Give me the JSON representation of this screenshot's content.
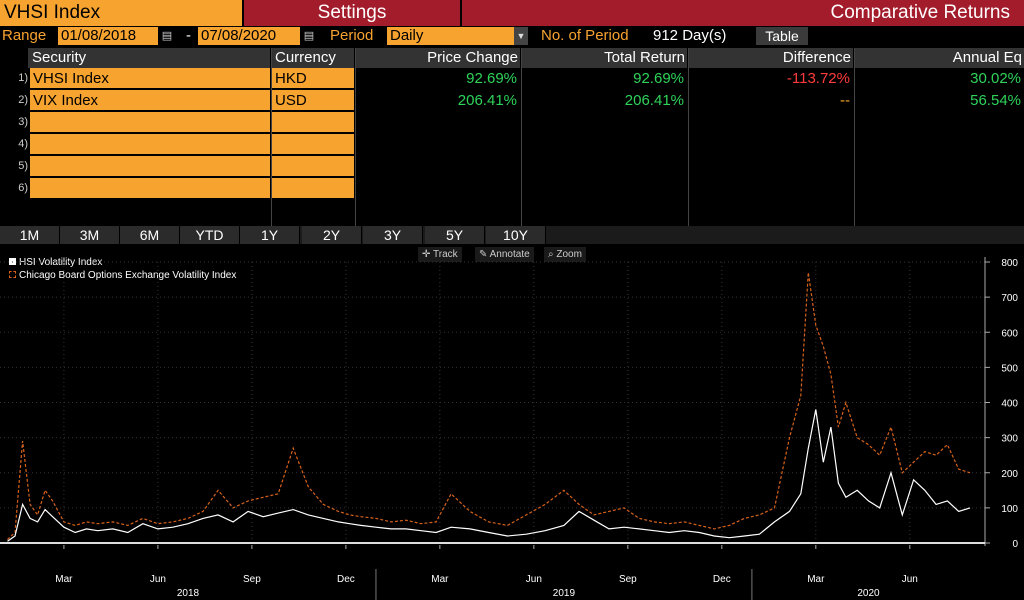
{
  "header": {
    "ticker": "VHSI Index",
    "settings_label": "Settings",
    "title": "Comparative Returns"
  },
  "range": {
    "label": "Range",
    "start": "01/08/2018",
    "dash": "-",
    "end": "07/08/2020",
    "period_label": "Period",
    "period_value": "Daily",
    "num_period_label": "No. of Period",
    "num_period_value": "912 Day(s)",
    "table_label": "Table"
  },
  "table": {
    "headers": [
      "Security",
      "Currency",
      "Price Change",
      "Total Return",
      "Difference",
      "Annual Eq"
    ],
    "rows": [
      {
        "n": "1)",
        "security": "VHSI Index",
        "currency": "HKD",
        "price_change": "92.69%",
        "total_return": "92.69%",
        "difference": "-113.72%",
        "annual_eq": "30.02%"
      },
      {
        "n": "2)",
        "security": "VIX Index",
        "currency": "USD",
        "price_change": "206.41%",
        "total_return": "206.41%",
        "difference": "--",
        "annual_eq": "56.54%"
      },
      {
        "n": "3)",
        "security": "",
        "currency": "",
        "price_change": "",
        "total_return": "",
        "difference": "",
        "annual_eq": ""
      },
      {
        "n": "4)",
        "security": "",
        "currency": "",
        "price_change": "",
        "total_return": "",
        "difference": "",
        "annual_eq": ""
      },
      {
        "n": "5)",
        "security": "",
        "currency": "",
        "price_change": "",
        "total_return": "",
        "difference": "",
        "annual_eq": ""
      },
      {
        "n": "6)",
        "security": "",
        "currency": "",
        "price_change": "",
        "total_return": "",
        "difference": "",
        "annual_eq": ""
      }
    ]
  },
  "periods": [
    "1M",
    "3M",
    "6M",
    "YTD",
    "1Y",
    "2Y",
    "3Y",
    "5Y",
    "10Y"
  ],
  "chart_tools": {
    "track": "Track",
    "annotate": "Annotate",
    "zoom": "Zoom"
  },
  "colors": {
    "accent": "#f7a330",
    "title_bar": "#a31c2b",
    "positive": "#2fd35a",
    "negative": "#ff3b3b",
    "series_hsi": "#ffffff",
    "series_vix": "#d8621a"
  },
  "chart_data": {
    "type": "line",
    "ylim": [
      0,
      800
    ],
    "yticks": [
      "0",
      "100",
      "200",
      "300",
      "400",
      "500",
      "600",
      "700",
      "800"
    ],
    "month_labels": [
      "Mar",
      "Jun",
      "Sep",
      "Dec",
      "Mar",
      "Jun",
      "Sep",
      "Dec",
      "Mar",
      "Jun"
    ],
    "year_labels": [
      "2018",
      "2019",
      "2020"
    ],
    "series": [
      {
        "name": "HSI Volatility Index",
        "x": [
          2018.02,
          2018.04,
          2018.06,
          2018.08,
          2018.1,
          2018.12,
          2018.14,
          2018.17,
          2018.2,
          2018.23,
          2018.26,
          2018.3,
          2018.34,
          2018.38,
          2018.42,
          2018.46,
          2018.5,
          2018.54,
          2018.58,
          2018.62,
          2018.66,
          2018.7,
          2018.74,
          2018.78,
          2018.82,
          2018.86,
          2018.9,
          2018.93,
          2018.96,
          2019.0,
          2019.04,
          2019.08,
          2019.12,
          2019.16,
          2019.2,
          2019.25,
          2019.3,
          2019.35,
          2019.4,
          2019.45,
          2019.5,
          2019.54,
          2019.58,
          2019.62,
          2019.66,
          2019.7,
          2019.74,
          2019.78,
          2019.82,
          2019.86,
          2019.9,
          2019.94,
          2019.98,
          2020.02,
          2020.06,
          2020.1,
          2020.13,
          2020.15,
          2020.17,
          2020.19,
          2020.21,
          2020.23,
          2020.25,
          2020.28,
          2020.31,
          2020.34,
          2020.37,
          2020.4,
          2020.43,
          2020.46,
          2020.49,
          2020.52,
          2020.55,
          2020.58
        ],
        "values": [
          5,
          20,
          110,
          70,
          60,
          95,
          75,
          45,
          30,
          40,
          35,
          40,
          30,
          55,
          40,
          45,
          55,
          70,
          80,
          60,
          90,
          75,
          85,
          95,
          80,
          70,
          60,
          55,
          50,
          45,
          40,
          40,
          35,
          30,
          45,
          40,
          30,
          20,
          25,
          35,
          50,
          90,
          65,
          40,
          45,
          40,
          35,
          30,
          35,
          30,
          20,
          15,
          20,
          25,
          60,
          90,
          140,
          270,
          380,
          230,
          330,
          170,
          130,
          150,
          120,
          100,
          200,
          80,
          180,
          150,
          110,
          120,
          90,
          100
        ]
      },
      {
        "name": "Chicago Board Options Exchange Volatility Index",
        "x": [
          2018.02,
          2018.04,
          2018.06,
          2018.08,
          2018.1,
          2018.12,
          2018.14,
          2018.17,
          2018.2,
          2018.23,
          2018.26,
          2018.3,
          2018.34,
          2018.38,
          2018.42,
          2018.46,
          2018.5,
          2018.54,
          2018.58,
          2018.62,
          2018.66,
          2018.7,
          2018.74,
          2018.78,
          2018.82,
          2018.86,
          2018.9,
          2018.93,
          2018.96,
          2019.0,
          2019.04,
          2019.08,
          2019.12,
          2019.16,
          2019.2,
          2019.25,
          2019.3,
          2019.35,
          2019.4,
          2019.45,
          2019.5,
          2019.54,
          2019.58,
          2019.62,
          2019.66,
          2019.7,
          2019.74,
          2019.78,
          2019.82,
          2019.86,
          2019.9,
          2019.94,
          2019.98,
          2020.02,
          2020.06,
          2020.1,
          2020.13,
          2020.15,
          2020.17,
          2020.19,
          2020.21,
          2020.23,
          2020.25,
          2020.28,
          2020.31,
          2020.34,
          2020.37,
          2020.4,
          2020.43,
          2020.46,
          2020.49,
          2020.52,
          2020.55,
          2020.58
        ],
        "values": [
          10,
          30,
          290,
          110,
          80,
          150,
          120,
          60,
          50,
          60,
          55,
          60,
          50,
          70,
          55,
          60,
          70,
          90,
          150,
          100,
          120,
          130,
          140,
          270,
          160,
          110,
          90,
          80,
          75,
          70,
          60,
          65,
          55,
          60,
          140,
          90,
          60,
          50,
          80,
          110,
          150,
          110,
          80,
          90,
          100,
          70,
          60,
          55,
          60,
          50,
          40,
          50,
          70,
          80,
          100,
          300,
          420,
          770,
          620,
          560,
          480,
          330,
          400,
          300,
          280,
          250,
          330,
          200,
          230,
          260,
          250,
          280,
          210,
          200
        ]
      }
    ],
    "title": "",
    "xlabel": "",
    "ylabel": "",
    "grid": true,
    "legend": "top-left"
  }
}
